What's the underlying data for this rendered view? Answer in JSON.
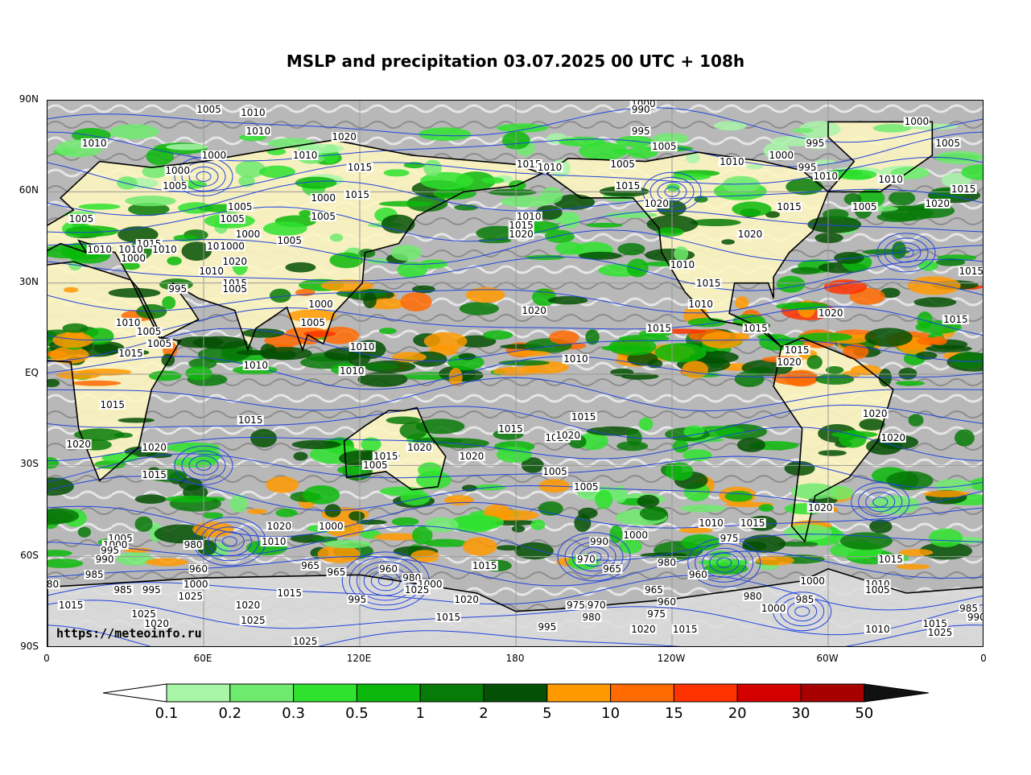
{
  "title": "MSLP and precipitation 03.07.2025 00 UTC + 108h",
  "watermark": "https://meteoinfo.ru",
  "lat_labels": [
    "90N",
    "60N",
    "30N",
    "EQ",
    "30S",
    "60S",
    "90S"
  ],
  "lon_labels": [
    "0",
    "60E",
    "120E",
    "180",
    "120W",
    "60W",
    "0"
  ],
  "colorbar": {
    "levels": [
      "0.1",
      "0.2",
      "0.3",
      "0.5",
      "1",
      "2",
      "5",
      "10",
      "15",
      "20",
      "30",
      "50"
    ],
    "colors": [
      "#a8f5a8",
      "#6eea6e",
      "#2ee22e",
      "#0bb80b",
      "#087a08",
      "#045004",
      "#ff9900",
      "#ff6a00",
      "#ff3300",
      "#d40000",
      "#a60000",
      "#111111"
    ]
  },
  "colors": {
    "isobar": "#2244dd",
    "coastline": "#000000",
    "ocean_gray": "#bdbdbd",
    "dry_land": "#fdf5c0"
  },
  "pressure_labels": [
    {
      "text": "1005",
      "lon": 62,
      "lat": 87
    },
    {
      "text": "1010",
      "lon": 79,
      "lat": 86
    },
    {
      "text": "1010",
      "lon": 81,
      "lat": 80
    },
    {
      "text": "1010",
      "lon": 18,
      "lat": 76
    },
    {
      "text": "1000",
      "lon": 64,
      "lat": 72
    },
    {
      "text": "1000",
      "lon": 50,
      "lat": 67
    },
    {
      "text": "1005",
      "lon": 49,
      "lat": 62
    },
    {
      "text": "1020",
      "lon": 114,
      "lat": 78
    },
    {
      "text": "1010",
      "lon": 99,
      "lat": 72
    },
    {
      "text": "1015",
      "lon": 120,
      "lat": 68
    },
    {
      "text": "1000",
      "lon": 106,
      "lat": 58
    },
    {
      "text": "1015",
      "lon": 119,
      "lat": 59
    },
    {
      "text": "1005",
      "lon": 106,
      "lat": 52
    },
    {
      "text": "1005",
      "lon": 74,
      "lat": 55
    },
    {
      "text": "1005",
      "lon": 71,
      "lat": 51
    },
    {
      "text": "1000",
      "lon": 77,
      "lat": 46
    },
    {
      "text": "1005",
      "lon": 93,
      "lat": 44
    },
    {
      "text": "1005",
      "lon": 13,
      "lat": 51
    },
    {
      "text": "1015",
      "lon": 39,
      "lat": 43
    },
    {
      "text": "1010",
      "lon": 20,
      "lat": 41
    },
    {
      "text": "1010",
      "lon": 32,
      "lat": 41
    },
    {
      "text": "1010",
      "lon": 45,
      "lat": 41
    },
    {
      "text": "1000",
      "lon": 33,
      "lat": 38
    },
    {
      "text": "1005",
      "lon": 66,
      "lat": 42
    },
    {
      "text": "1000",
      "lon": 71,
      "lat": 42
    },
    {
      "text": "1020",
      "lon": 72,
      "lat": 37
    },
    {
      "text": "1010",
      "lon": 63,
      "lat": 34
    },
    {
      "text": "1015",
      "lon": 72,
      "lat": 30
    },
    {
      "text": "1005",
      "lon": 72,
      "lat": 28
    },
    {
      "text": "995",
      "lon": 50,
      "lat": 28
    },
    {
      "text": "1000",
      "lon": 105,
      "lat": 23
    },
    {
      "text": "1005",
      "lon": 102,
      "lat": 17
    },
    {
      "text": "1010",
      "lon": 31,
      "lat": 17
    },
    {
      "text": "1005",
      "lon": 39,
      "lat": 14
    },
    {
      "text": "1005",
      "lon": 43,
      "lat": 10
    },
    {
      "text": "1015",
      "lon": 32,
      "lat": 7
    },
    {
      "text": "1010",
      "lon": 80,
      "lat": 3
    },
    {
      "text": "1010",
      "lon": 121,
      "lat": 9
    },
    {
      "text": "1010",
      "lon": 117,
      "lat": 1
    },
    {
      "text": "1015",
      "lon": 25,
      "lat": -10
    },
    {
      "text": "1015",
      "lon": 78,
      "lat": -15
    },
    {
      "text": "1020",
      "lon": 12,
      "lat": -23
    },
    {
      "text": "1020",
      "lon": 41,
      "lat": -24
    },
    {
      "text": "1015",
      "lon": 41,
      "lat": -33
    },
    {
      "text": "1020",
      "lon": 143,
      "lat": -24
    },
    {
      "text": "1015",
      "lon": 130,
      "lat": -27
    },
    {
      "text": "1005",
      "lon": 126,
      "lat": -30
    },
    {
      "text": "1020",
      "lon": 163,
      "lat": -27
    },
    {
      "text": "1015",
      "lon": 178,
      "lat": -18
    },
    {
      "text": "1010",
      "lon": 196,
      "lat": -21
    },
    {
      "text": "1010",
      "lon": 203,
      "lat": 5
    },
    {
      "text": "1020",
      "lon": 187,
      "lat": 21
    },
    {
      "text": "1015",
      "lon": 235,
      "lat": 15
    },
    {
      "text": "1020",
      "lon": 234,
      "lat": 56
    },
    {
      "text": "1015",
      "lon": 223,
      "lat": 62
    },
    {
      "text": "1015",
      "lon": 185,
      "lat": 69
    },
    {
      "text": "1010",
      "lon": 193,
      "lat": 68
    },
    {
      "text": "1005",
      "lon": 221,
      "lat": 69
    },
    {
      "text": "995",
      "lon": 228,
      "lat": 80
    },
    {
      "text": "1000",
      "lon": 229,
      "lat": 89
    },
    {
      "text": "990",
      "lon": 228,
      "lat": 87
    },
    {
      "text": "1005",
      "lon": 237,
      "lat": 75
    },
    {
      "text": "1010",
      "lon": 185,
      "lat": 52
    },
    {
      "text": "1015",
      "lon": 182,
      "lat": 49
    },
    {
      "text": "1020",
      "lon": 182,
      "lat": 46
    },
    {
      "text": "1010",
      "lon": 244,
      "lat": 36
    },
    {
      "text": "1015",
      "lon": 254,
      "lat": 30
    },
    {
      "text": "1010",
      "lon": 251,
      "lat": 23
    },
    {
      "text": "1015",
      "lon": 272,
      "lat": 15
    },
    {
      "text": "1015",
      "lon": 288,
      "lat": 8
    },
    {
      "text": "1020",
      "lon": 285,
      "lat": 4
    },
    {
      "text": "1000",
      "lon": 282,
      "lat": 72
    },
    {
      "text": "995",
      "lon": 295,
      "lat": 76
    },
    {
      "text": "1010",
      "lon": 263,
      "lat": 70
    },
    {
      "text": "995",
      "lon": 292,
      "lat": 68
    },
    {
      "text": "1010",
      "lon": 299,
      "lat": 65
    },
    {
      "text": "1015",
      "lon": 285,
      "lat": 55
    },
    {
      "text": "1020",
      "lon": 270,
      "lat": 46
    },
    {
      "text": "1005",
      "lon": 314,
      "lat": 55
    },
    {
      "text": "1000",
      "lon": 334,
      "lat": 83
    },
    {
      "text": "1005",
      "lon": 346,
      "lat": 76
    },
    {
      "text": "1010",
      "lon": 324,
      "lat": 64
    },
    {
      "text": "1015",
      "lon": 352,
      "lat": 61
    },
    {
      "text": "1020",
      "lon": 342,
      "lat": 56
    },
    {
      "text": "1015",
      "lon": 355,
      "lat": 34
    },
    {
      "text": "1020",
      "lon": 301,
      "lat": 20
    },
    {
      "text": "1015",
      "lon": 349,
      "lat": 18
    },
    {
      "text": "1020",
      "lon": 200,
      "lat": -20
    },
    {
      "text": "1015",
      "lon": 206,
      "lat": -14
    },
    {
      "text": "1005",
      "lon": 195,
      "lat": -32
    },
    {
      "text": "1005",
      "lon": 207,
      "lat": -37
    },
    {
      "text": "1020",
      "lon": 318,
      "lat": -13
    },
    {
      "text": "1020",
      "lon": 325,
      "lat": -21
    },
    {
      "text": "1020",
      "lon": 297,
      "lat": -44
    },
    {
      "text": "1015",
      "lon": 271,
      "lat": -49
    },
    {
      "text": "1010",
      "lon": 255,
      "lat": -49
    },
    {
      "text": "1015",
      "lon": 324,
      "lat": -61
    },
    {
      "text": "1020",
      "lon": 89,
      "lat": -50
    },
    {
      "text": "1010",
      "lon": 87,
      "lat": -55
    },
    {
      "text": "1000",
      "lon": 109,
      "lat": -50
    },
    {
      "text": "1005",
      "lon": 28,
      "lat": -54
    },
    {
      "text": "1000",
      "lon": 26,
      "lat": -56
    },
    {
      "text": "995",
      "lon": 24,
      "lat": -58
    },
    {
      "text": "990",
      "lon": 22,
      "lat": -61
    },
    {
      "text": "985",
      "lon": 18,
      "lat": -66
    },
    {
      "text": "980",
      "lon": 56,
      "lat": -56
    },
    {
      "text": "965",
      "lon": 101,
      "lat": -63
    },
    {
      "text": "965",
      "lon": 111,
      "lat": -65
    },
    {
      "text": "960",
      "lon": 131,
      "lat": -64
    },
    {
      "text": "960",
      "lon": 58,
      "lat": -64
    },
    {
      "text": "980",
      "lon": 140,
      "lat": -67
    },
    {
      "text": "1000",
      "lon": 147,
      "lat": -69
    },
    {
      "text": "1025",
      "lon": 142,
      "lat": -71
    },
    {
      "text": "995",
      "lon": 119,
      "lat": -74
    },
    {
      "text": "1015",
      "lon": 93,
      "lat": -72
    },
    {
      "text": "1000",
      "lon": 57,
      "lat": -69
    },
    {
      "text": "1025",
      "lon": 55,
      "lat": -73
    },
    {
      "text": "995",
      "lon": 40,
      "lat": -71
    },
    {
      "text": "985",
      "lon": 29,
      "lat": -71
    },
    {
      "text": "1015",
      "lon": 9,
      "lat": -76
    },
    {
      "text": "1025",
      "lon": 37,
      "lat": -79
    },
    {
      "text": "1020",
      "lon": 42,
      "lat": -82
    },
    {
      "text": "1020",
      "lon": 77,
      "lat": -76
    },
    {
      "text": "1025",
      "lon": 79,
      "lat": -81
    },
    {
      "text": "1025",
      "lon": 99,
      "lat": -88
    },
    {
      "text": "1015",
      "lon": 154,
      "lat": -80
    },
    {
      "text": "1020",
      "lon": 161,
      "lat": -74
    },
    {
      "text": "1015",
      "lon": 168,
      "lat": -63
    },
    {
      "text": "990",
      "lon": 212,
      "lat": -55
    },
    {
      "text": "970",
      "lon": 207,
      "lat": -61
    },
    {
      "text": "965",
      "lon": 217,
      "lat": -64
    },
    {
      "text": "1000",
      "lon": 226,
      "lat": -53
    },
    {
      "text": "980",
      "lon": 238,
      "lat": -62
    },
    {
      "text": "960",
      "lon": 250,
      "lat": -66
    },
    {
      "text": "965",
      "lon": 233,
      "lat": -71
    },
    {
      "text": "960",
      "lon": 238,
      "lat": -75
    },
    {
      "text": "975",
      "lon": 234,
      "lat": -79
    },
    {
      "text": "975",
      "lon": 203,
      "lat": -76
    },
    {
      "text": "970",
      "lon": 211,
      "lat": -76
    },
    {
      "text": "980",
      "lon": 209,
      "lat": -80
    },
    {
      "text": "1020",
      "lon": 229,
      "lat": -84
    },
    {
      "text": "1015",
      "lon": 245,
      "lat": -84
    },
    {
      "text": "995",
      "lon": 192,
      "lat": -83
    },
    {
      "text": "975",
      "lon": 262,
      "lat": -54
    },
    {
      "text": "980",
      "lon": 271,
      "lat": -73
    },
    {
      "text": "1000",
      "lon": 279,
      "lat": -77
    },
    {
      "text": "985",
      "lon": 291,
      "lat": -74
    },
    {
      "text": "1000",
      "lon": 294,
      "lat": -68
    },
    {
      "text": "1010",
      "lon": 319,
      "lat": -69
    },
    {
      "text": "1005",
      "lon": 319,
      "lat": -71
    },
    {
      "text": "1010",
      "lon": 319,
      "lat": -84
    },
    {
      "text": "1025",
      "lon": 343,
      "lat": -85
    },
    {
      "text": "1015",
      "lon": 341,
      "lat": -82
    },
    {
      "text": "985",
      "lon": 354,
      "lat": -77
    },
    {
      "text": "990",
      "lon": 357,
      "lat": -80
    },
    {
      "text": "80",
      "lon": 2,
      "lat": -69
    }
  ]
}
